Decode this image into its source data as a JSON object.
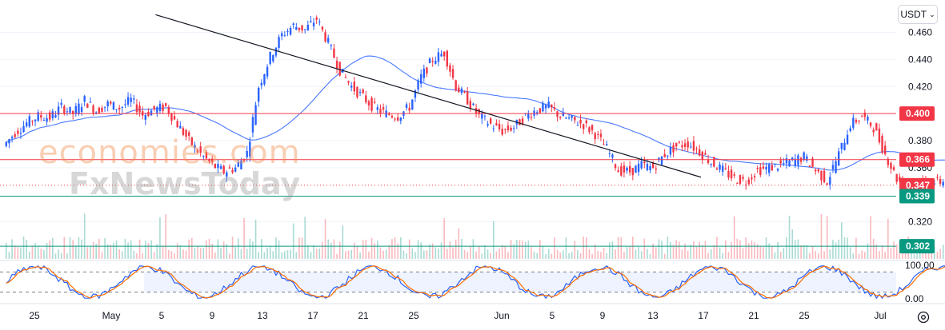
{
  "header": {
    "currency_label": "USDT"
  },
  "watermark": {
    "line1": "economies.com",
    "line2": "FxNewsToday"
  },
  "chart_data": {
    "type": "candlestick",
    "ylim": [
      0.295,
      0.478
    ],
    "y_ticks": [
      0.46,
      0.44,
      0.42,
      0.38,
      0.36,
      0.32
    ],
    "x_ticks": [
      "25",
      "May",
      "5",
      "9",
      "13",
      "17",
      "21",
      "25",
      "Jun",
      "5",
      "9",
      "13",
      "17",
      "21",
      "25",
      "Jul"
    ],
    "price_labels": [
      {
        "value": "0.400",
        "price": 0.4,
        "color": "#f23645"
      },
      {
        "value": "0.366",
        "price": 0.366,
        "color": "#f23645"
      },
      {
        "value": "0.347",
        "price": 0.347,
        "color": "#f23645"
      },
      {
        "value": "0.339",
        "price": 0.339,
        "color": "#089981"
      },
      {
        "value": "0.302",
        "price": 0.302,
        "color": "#089981"
      }
    ],
    "resistance_levels": [
      0.4,
      0.366
    ],
    "support_levels": [
      0.339,
      0.302
    ],
    "current_price": 0.347,
    "trendline": [
      {
        "day": 13,
        "price": 0.473
      },
      {
        "day": 60,
        "price": 0.353
      }
    ],
    "daily_closes": [
      0.376,
      0.386,
      0.393,
      0.398,
      0.397,
      0.405,
      0.4,
      0.41,
      0.402,
      0.407,
      0.404,
      0.41,
      0.399,
      0.403,
      0.405,
      0.392,
      0.38,
      0.37,
      0.362,
      0.357,
      0.36,
      0.371,
      0.42,
      0.442,
      0.458,
      0.465,
      0.462,
      0.47,
      0.452,
      0.432,
      0.42,
      0.412,
      0.404,
      0.4,
      0.398,
      0.405,
      0.427,
      0.44,
      0.445,
      0.42,
      0.41,
      0.398,
      0.392,
      0.387,
      0.39,
      0.398,
      0.403,
      0.405,
      0.398,
      0.395,
      0.392,
      0.385,
      0.374,
      0.358,
      0.357,
      0.362,
      0.36,
      0.37,
      0.376,
      0.378,
      0.372,
      0.364,
      0.358,
      0.352,
      0.35,
      0.358,
      0.36,
      0.362,
      0.365,
      0.368,
      0.358,
      0.35,
      0.37,
      0.392,
      0.398,
      0.39,
      0.37,
      0.352,
      0.344,
      0.348,
      0.349,
      0.35,
      0.352,
      0.36,
      0.347
    ],
    "oscillator": {
      "ylim": [
        0,
        100
      ],
      "upper": 80,
      "lower": 20,
      "ticks": [
        "100.00",
        "0.00"
      ]
    }
  }
}
